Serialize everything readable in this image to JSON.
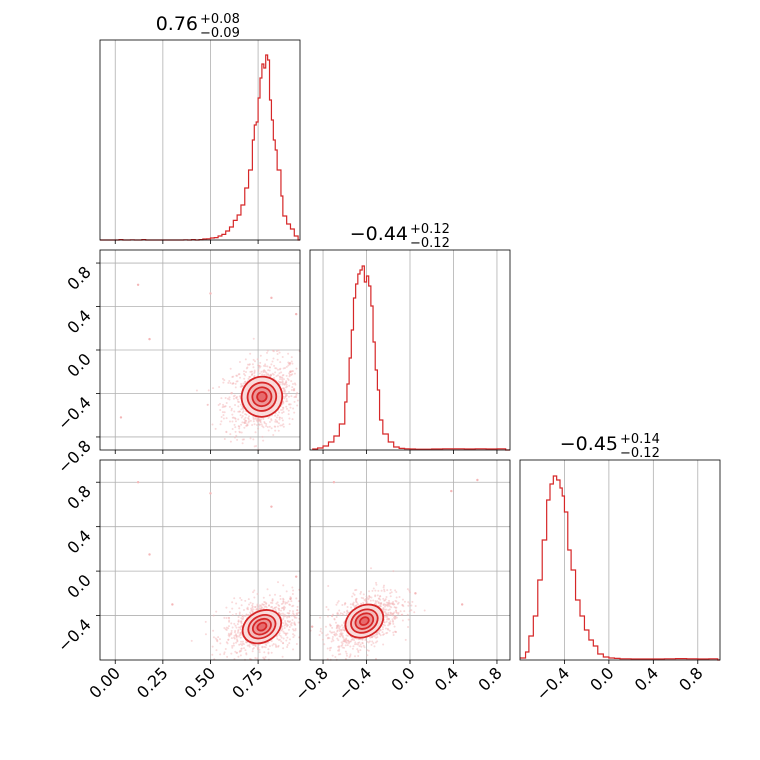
{
  "figure": {
    "kind": "corner plot",
    "color": "#d62728",
    "grid": true
  },
  "chart_data": [
    {
      "type": "histogram",
      "panel": "0,0",
      "title": {
        "median": "0.76",
        "plus": "+0.08",
        "minus": "−0.09"
      },
      "xlim": [
        -0.08,
        0.97
      ],
      "bins": [
        [
          -0.08,
          0.0
        ],
        [
          -0.06,
          0.0
        ],
        [
          -0.04,
          0.0
        ],
        [
          -0.02,
          0.0
        ],
        [
          0.0,
          0.0
        ],
        [
          0.02,
          0.002
        ],
        [
          0.04,
          0.0
        ],
        [
          0.06,
          0.0
        ],
        [
          0.08,
          0.001
        ],
        [
          0.1,
          0.0
        ],
        [
          0.12,
          0.0
        ],
        [
          0.14,
          0.002
        ],
        [
          0.16,
          0.0
        ],
        [
          0.18,
          0.0
        ],
        [
          0.2,
          0.0
        ],
        [
          0.22,
          0.0
        ],
        [
          0.24,
          0.0
        ],
        [
          0.26,
          0.0
        ],
        [
          0.28,
          0.0
        ],
        [
          0.3,
          0.0
        ],
        [
          0.32,
          0.0
        ],
        [
          0.34,
          0.0
        ],
        [
          0.36,
          0.001
        ],
        [
          0.38,
          0.0
        ],
        [
          0.4,
          0.002
        ],
        [
          0.42,
          0.0
        ],
        [
          0.44,
          0.002
        ],
        [
          0.46,
          0.005
        ],
        [
          0.48,
          0.006
        ],
        [
          0.5,
          0.01
        ],
        [
          0.52,
          0.012
        ],
        [
          0.54,
          0.02
        ],
        [
          0.56,
          0.028
        ],
        [
          0.58,
          0.045
        ],
        [
          0.6,
          0.065
        ],
        [
          0.62,
          0.098
        ],
        [
          0.64,
          0.125
        ],
        [
          0.66,
          0.175
        ],
        [
          0.68,
          0.26
        ],
        [
          0.7,
          0.35
        ],
        [
          0.72,
          0.5
        ],
        [
          0.73,
          0.575
        ],
        [
          0.74,
          0.59
        ],
        [
          0.75,
          0.71
        ],
        [
          0.76,
          0.81
        ],
        [
          0.77,
          0.88
        ],
        [
          0.78,
          0.86
        ],
        [
          0.79,
          0.925
        ],
        [
          0.8,
          0.9
        ],
        [
          0.81,
          0.7
        ],
        [
          0.82,
          0.6
        ],
        [
          0.83,
          0.5
        ],
        [
          0.84,
          0.45
        ],
        [
          0.85,
          0.35
        ],
        [
          0.86,
          0.35
        ],
        [
          0.87,
          0.22
        ],
        [
          0.88,
          0.12
        ],
        [
          0.9,
          0.08
        ],
        [
          0.92,
          0.055
        ],
        [
          0.94,
          0.02
        ],
        [
          0.96,
          0.0
        ]
      ]
    },
    {
      "type": "scatter",
      "panel": "1,0",
      "xlim": [
        -0.08,
        0.97
      ],
      "ylim": [
        -0.92,
        0.92
      ],
      "center": [
        0.77,
        -0.43
      ],
      "spread": [
        0.07,
        0.12
      ],
      "levels": [
        0.4,
        0.8,
        1.2,
        1.7
      ],
      "outliers": [
        [
          0.5,
          0.52
        ],
        [
          0.12,
          0.6
        ],
        [
          0.18,
          0.1
        ],
        [
          0.82,
          0.48
        ],
        [
          0.95,
          0.33
        ],
        [
          0.03,
          -0.62
        ],
        [
          0.92,
          -0.2
        ]
      ]
    },
    {
      "type": "histogram",
      "panel": "1,1",
      "title": {
        "median": "−0.44",
        "plus": "+0.12",
        "minus": "−0.12"
      },
      "xlim": [
        -0.92,
        0.92
      ],
      "bins": [
        [
          -0.9,
          0.005
        ],
        [
          -0.85,
          0.01
        ],
        [
          -0.8,
          0.02
        ],
        [
          -0.75,
          0.04
        ],
        [
          -0.7,
          0.07
        ],
        [
          -0.65,
          0.13
        ],
        [
          -0.6,
          0.24
        ],
        [
          -0.58,
          0.33
        ],
        [
          -0.56,
          0.46
        ],
        [
          -0.54,
          0.6
        ],
        [
          -0.52,
          0.76
        ],
        [
          -0.5,
          0.83
        ],
        [
          -0.48,
          0.88
        ],
        [
          -0.46,
          0.9
        ],
        [
          -0.44,
          0.92
        ],
        [
          -0.42,
          0.84
        ],
        [
          -0.4,
          0.87
        ],
        [
          -0.38,
          0.82
        ],
        [
          -0.36,
          0.72
        ],
        [
          -0.34,
          0.54
        ],
        [
          -0.32,
          0.4
        ],
        [
          -0.3,
          0.3
        ],
        [
          -0.28,
          0.15
        ],
        [
          -0.25,
          0.08
        ],
        [
          -0.2,
          0.04
        ],
        [
          -0.15,
          0.015
        ],
        [
          -0.1,
          0.008
        ],
        [
          -0.05,
          0.006
        ],
        [
          0.0,
          0.005
        ],
        [
          0.05,
          0.004
        ],
        [
          0.1,
          0.004
        ],
        [
          0.2,
          0.005
        ],
        [
          0.3,
          0.006
        ],
        [
          0.4,
          0.006
        ],
        [
          0.5,
          0.005
        ],
        [
          0.6,
          0.006
        ],
        [
          0.7,
          0.005
        ],
        [
          0.8,
          0.006
        ],
        [
          0.88,
          0.0
        ]
      ]
    },
    {
      "type": "scatter",
      "panel": "2,0",
      "xlim": [
        -0.08,
        0.97
      ],
      "ylim": [
        -0.8,
        1.0
      ],
      "center": [
        0.77,
        -0.5
      ],
      "spread": [
        0.07,
        0.09
      ],
      "levels": [
        0.4,
        0.8,
        1.2,
        1.7
      ],
      "outliers": [
        [
          0.5,
          0.7
        ],
        [
          0.82,
          0.58
        ],
        [
          0.12,
          0.8
        ],
        [
          0.18,
          0.15
        ],
        [
          0.95,
          -0.05
        ],
        [
          0.3,
          -0.3
        ],
        [
          0.92,
          -0.25
        ]
      ]
    },
    {
      "type": "scatter",
      "panel": "2,1",
      "xlim": [
        -0.92,
        0.92
      ],
      "ylim": [
        -0.8,
        1.0
      ],
      "center": [
        -0.42,
        -0.45
      ],
      "spread": [
        0.12,
        0.09
      ],
      "levels": [
        0.4,
        0.8,
        1.2,
        1.7
      ],
      "outliers": [
        [
          0.38,
          0.72
        ],
        [
          0.62,
          0.82
        ],
        [
          -0.7,
          0.8
        ],
        [
          0.05,
          -0.2
        ],
        [
          0.48,
          -0.3
        ],
        [
          -0.9,
          -0.5
        ]
      ]
    },
    {
      "type": "histogram",
      "panel": "2,2",
      "title": {
        "median": "−0.45",
        "plus": "+0.14",
        "minus": "−0.12"
      },
      "xlim": [
        -0.8,
        1.0
      ],
      "bins": [
        [
          -0.8,
          0.01
        ],
        [
          -0.75,
          0.04
        ],
        [
          -0.72,
          0.12
        ],
        [
          -0.68,
          0.22
        ],
        [
          -0.64,
          0.4
        ],
        [
          -0.6,
          0.6
        ],
        [
          -0.56,
          0.8
        ],
        [
          -0.53,
          0.88
        ],
        [
          -0.5,
          0.92
        ],
        [
          -0.47,
          0.9
        ],
        [
          -0.44,
          0.86
        ],
        [
          -0.42,
          0.82
        ],
        [
          -0.4,
          0.74
        ],
        [
          -0.37,
          0.55
        ],
        [
          -0.34,
          0.45
        ],
        [
          -0.3,
          0.3
        ],
        [
          -0.26,
          0.22
        ],
        [
          -0.22,
          0.15
        ],
        [
          -0.18,
          0.1
        ],
        [
          -0.14,
          0.07
        ],
        [
          -0.1,
          0.03
        ],
        [
          -0.05,
          0.015
        ],
        [
          0.0,
          0.01
        ],
        [
          0.05,
          0.008
        ],
        [
          0.1,
          0.006
        ],
        [
          0.2,
          0.005
        ],
        [
          0.3,
          0.005
        ],
        [
          0.4,
          0.005
        ],
        [
          0.5,
          0.006
        ],
        [
          0.6,
          0.007
        ],
        [
          0.7,
          0.006
        ],
        [
          0.8,
          0.005
        ],
        [
          0.9,
          0.006
        ],
        [
          0.98,
          0.0
        ]
      ]
    }
  ],
  "ticks": {
    "x_col0": [
      "0.00",
      "0.25",
      "0.50",
      "0.75"
    ],
    "x_col0_values": [
      0.0,
      0.25,
      0.5,
      0.75
    ],
    "x_col1": [
      "−0.8",
      "−0.4",
      "0.0",
      "0.4",
      "0.8"
    ],
    "x_col1_values": [
      -0.8,
      -0.4,
      0.0,
      0.4,
      0.8
    ],
    "x_col2": [
      "−0.4",
      "0.0",
      "0.4",
      "0.8"
    ],
    "x_col2_values": [
      -0.4,
      0.0,
      0.4,
      0.8
    ],
    "y_row1": [
      "0.8",
      "0.4",
      "0.0",
      "−0.4",
      "−0.8"
    ],
    "y_row1_values": [
      0.8,
      0.4,
      0.0,
      -0.4,
      -0.8
    ],
    "y_row2": [
      "0.8",
      "0.4",
      "0.0",
      "−0.4"
    ],
    "y_row2_values": [
      0.8,
      0.4,
      0.0,
      -0.4
    ]
  }
}
